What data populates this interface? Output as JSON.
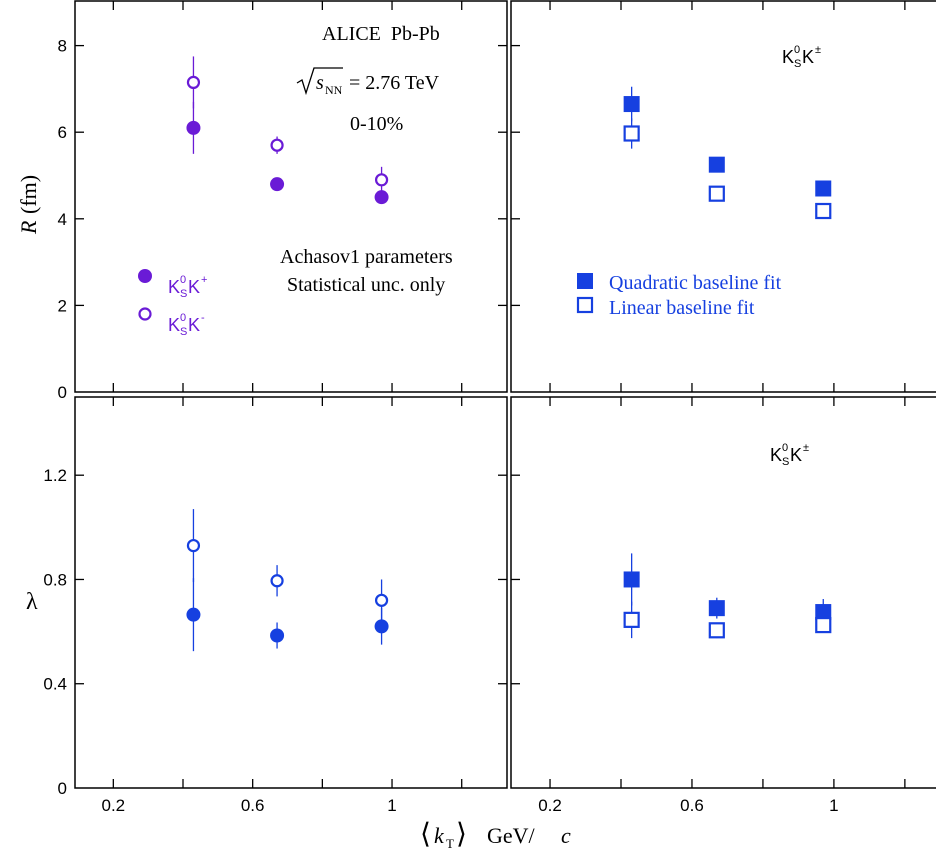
{
  "colors": {
    "purple": "#6a1bd6",
    "blue": "#1640e0",
    "frame": "#000000"
  },
  "texts": {
    "experiment": "ALICE  Pb-Pb",
    "sqrt_s": "s",
    "sqrt_s_sub": "NN",
    "sqrt_s_value": "= 2.76 TeV",
    "centrality": "0-10%",
    "param_line1": "Achasov1 parameters",
    "param_line2": "Statistical unc. only",
    "pair_label": "K",
    "pair_sup": "0",
    "pair_sub": "S",
    "pair_k": "K",
    "pair_charge": "±",
    "xlabel_k": "k",
    "xlabel_sub": "T",
    "xlabel_unit": "GeV/",
    "xlabel_c": "c",
    "ylabel_R": "R",
    "ylabel_R_unit": "(fm)",
    "ylabel_lambda": "λ"
  },
  "chart_data": [
    {
      "panel": "top-left",
      "type": "scatter",
      "ylabel": "R (fm)",
      "xlim": [
        0.2,
        1.3
      ],
      "ylim": [
        0,
        9
      ],
      "x_ticks": [],
      "y_ticks": [
        0,
        2,
        4,
        6,
        8
      ],
      "y_tick_labels": [
        "0",
        "2",
        "4",
        "6",
        "8"
      ],
      "legend_position": "left",
      "series": [
        {
          "name": "K0SK+",
          "legend_sup": "+",
          "marker": "filled-circle",
          "color": "#6a1bd6",
          "x": [
            0.43,
            0.67,
            0.97
          ],
          "y": [
            6.1,
            4.8,
            4.5
          ],
          "err": [
            0.6,
            0.12,
            0.12
          ]
        },
        {
          "name": "K0SK-",
          "legend_sup": "-",
          "marker": "open-circle",
          "color": "#6a1bd6",
          "x": [
            0.43,
            0.67,
            0.97
          ],
          "y": [
            7.15,
            5.7,
            4.9
          ],
          "err": [
            0.6,
            0.2,
            0.3
          ]
        }
      ]
    },
    {
      "panel": "top-right",
      "type": "scatter",
      "xlim": [
        0.2,
        1.3
      ],
      "ylim": [
        0,
        9
      ],
      "x_ticks": [],
      "y_ticks": [
        0,
        2,
        4,
        6,
        8
      ],
      "legend_position": "center-left",
      "series": [
        {
          "name": "Quadratic baseline fit",
          "marker": "filled-square",
          "color": "#1640e0",
          "x": [
            0.43,
            0.67,
            0.97
          ],
          "y": [
            6.65,
            5.25,
            4.7
          ],
          "err": [
            0.4,
            0.15,
            0.12
          ]
        },
        {
          "name": "Linear baseline fit",
          "marker": "open-square",
          "color": "#1640e0",
          "x": [
            0.43,
            0.67,
            0.97
          ],
          "y": [
            5.97,
            4.58,
            4.18
          ],
          "err": [
            0.35,
            0.12,
            0.12
          ]
        }
      ]
    },
    {
      "panel": "bottom-left",
      "type": "scatter",
      "ylabel": "λ",
      "xlabel": "⟨kT⟩ GeV/c",
      "xlim": [
        0.2,
        1.3
      ],
      "ylim": [
        0,
        1.4
      ],
      "x_ticks": [
        0.2,
        0.6,
        1.0
      ],
      "x_tick_labels": [
        "0.2",
        "0.6",
        "1"
      ],
      "y_ticks": [
        0,
        0.4,
        0.8,
        1.2
      ],
      "y_tick_labels": [
        "0",
        "0.4",
        "0.8",
        "1.2"
      ],
      "series": [
        {
          "name": "K0SK+",
          "marker": "filled-circle",
          "color": "#1640e0",
          "x": [
            0.43,
            0.67,
            0.97
          ],
          "y": [
            0.665,
            0.585,
            0.62
          ],
          "err": [
            0.14,
            0.05,
            0.07
          ]
        },
        {
          "name": "K0SK-",
          "marker": "open-circle",
          "color": "#1640e0",
          "x": [
            0.43,
            0.67,
            0.97
          ],
          "y": [
            0.93,
            0.795,
            0.72
          ],
          "err": [
            0.14,
            0.06,
            0.08
          ]
        }
      ]
    },
    {
      "panel": "bottom-right",
      "type": "scatter",
      "xlim": [
        0.2,
        1.3
      ],
      "ylim": [
        0,
        1.4
      ],
      "x_ticks": [
        0.2,
        0.6,
        1.0
      ],
      "x_tick_labels": [
        "0.2",
        "0.6",
        "1"
      ],
      "y_ticks": [
        0,
        0.4,
        0.8,
        1.2
      ],
      "series": [
        {
          "name": "Quadratic baseline fit",
          "marker": "filled-square",
          "color": "#1640e0",
          "x": [
            0.43,
            0.67,
            0.97
          ],
          "y": [
            0.8,
            0.69,
            0.675
          ],
          "err": [
            0.1,
            0.04,
            0.05
          ]
        },
        {
          "name": "Linear baseline fit",
          "marker": "open-square",
          "color": "#1640e0",
          "x": [
            0.43,
            0.67,
            0.97
          ],
          "y": [
            0.645,
            0.605,
            0.625
          ],
          "err": [
            0.07,
            0.03,
            0.03
          ]
        }
      ]
    }
  ]
}
